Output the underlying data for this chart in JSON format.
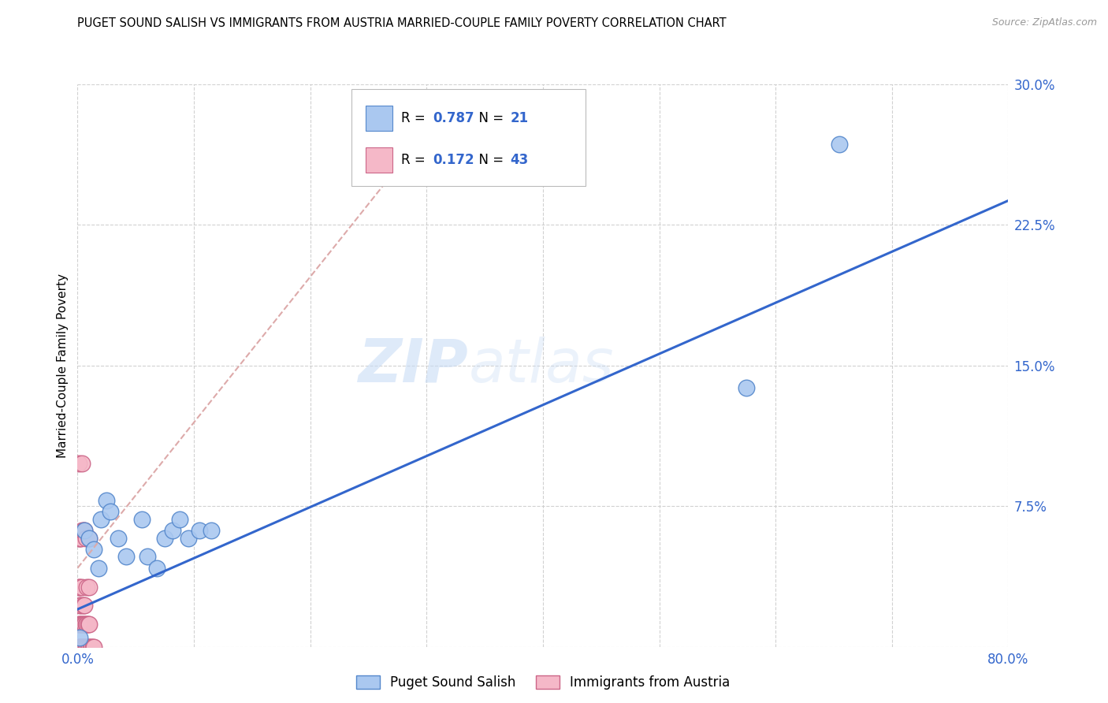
{
  "title": "PUGET SOUND SALISH VS IMMIGRANTS FROM AUSTRIA MARRIED-COUPLE FAMILY POVERTY CORRELATION CHART",
  "source": "Source: ZipAtlas.com",
  "ylabel": "Married-Couple Family Poverty",
  "xlim": [
    0,
    0.8
  ],
  "ylim": [
    0,
    0.3
  ],
  "yticks": [
    0.0,
    0.075,
    0.15,
    0.225,
    0.3
  ],
  "ytick_labels": [
    "",
    "7.5%",
    "15.0%",
    "22.5%",
    "30.0%"
  ],
  "xticks": [
    0.0,
    0.1,
    0.2,
    0.3,
    0.4,
    0.5,
    0.6,
    0.7,
    0.8
  ],
  "xtick_labels": [
    "0.0%",
    "",
    "",
    "",
    "",
    "",
    "",
    "",
    "80.0%"
  ],
  "grid_color": "#cccccc",
  "background_color": "#ffffff",
  "watermark_zip": "ZIP",
  "watermark_atlas": "atlas",
  "series1_color": "#aac8f0",
  "series1_edge_color": "#5588cc",
  "series1_name": "Puget Sound Salish",
  "series1_R": "0.787",
  "series1_N": "21",
  "series2_color": "#f5b8c8",
  "series2_edge_color": "#cc6688",
  "series2_name": "Immigrants from Austria",
  "series2_R": "0.172",
  "series2_N": "43",
  "trend1_color": "#3366cc",
  "trend2_color": "#ddaaaa",
  "series1_x": [
    0.002,
    0.006,
    0.01,
    0.014,
    0.018,
    0.02,
    0.025,
    0.028,
    0.035,
    0.042,
    0.055,
    0.06,
    0.068,
    0.075,
    0.082,
    0.088,
    0.095,
    0.105,
    0.115,
    0.575,
    0.655
  ],
  "series1_y": [
    0.005,
    0.062,
    0.058,
    0.052,
    0.042,
    0.068,
    0.078,
    0.072,
    0.058,
    0.048,
    0.068,
    0.048,
    0.042,
    0.058,
    0.062,
    0.068,
    0.058,
    0.062,
    0.062,
    0.138,
    0.268
  ],
  "series2_x": [
    0.001,
    0.001,
    0.001,
    0.001,
    0.001,
    0.002,
    0.002,
    0.002,
    0.002,
    0.002,
    0.003,
    0.003,
    0.003,
    0.003,
    0.004,
    0.004,
    0.004,
    0.004,
    0.004,
    0.005,
    0.005,
    0.005,
    0.005,
    0.006,
    0.006,
    0.006,
    0.006,
    0.007,
    0.007,
    0.007,
    0.008,
    0.008,
    0.008,
    0.009,
    0.009,
    0.01,
    0.01,
    0.01,
    0.01,
    0.011,
    0.012,
    0.013,
    0.014
  ],
  "series2_y": [
    0.0,
    0.012,
    0.032,
    0.058,
    0.098,
    0.0,
    0.012,
    0.022,
    0.032,
    0.058,
    0.0,
    0.012,
    0.022,
    0.058,
    0.0,
    0.012,
    0.032,
    0.062,
    0.098,
    0.0,
    0.012,
    0.022,
    0.062,
    0.0,
    0.012,
    0.022,
    0.062,
    0.0,
    0.012,
    0.058,
    0.0,
    0.012,
    0.032,
    0.0,
    0.012,
    0.0,
    0.012,
    0.032,
    0.058,
    0.0,
    0.0,
    0.0,
    0.0
  ],
  "trend1_x": [
    0.0,
    0.8
  ],
  "trend1_y": [
    0.02,
    0.238
  ],
  "trend2_x": [
    0.0,
    0.3
  ],
  "trend2_y": [
    0.042,
    0.275
  ]
}
